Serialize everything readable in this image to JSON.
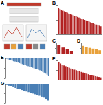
{
  "diagram": {
    "title": "A"
  },
  "chart_data": [
    {
      "type": "bar",
      "title": "B",
      "color": "#b22222",
      "tick_labels": false,
      "grid": false,
      "categories": [
        null,
        null,
        null,
        null,
        null,
        null,
        null,
        null,
        null,
        null,
        null,
        null,
        null,
        null,
        null,
        null,
        null,
        null,
        null,
        null,
        null,
        null,
        null,
        null,
        null,
        null,
        null,
        null,
        null,
        null
      ],
      "values": [
        92,
        88,
        85,
        82,
        80,
        77,
        75,
        72,
        70,
        68,
        66,
        64,
        62,
        60,
        58,
        56,
        54,
        52,
        50,
        48,
        46,
        44,
        42,
        40,
        38,
        36,
        34,
        32,
        30,
        28
      ],
      "ylim": [
        0,
        100
      ],
      "yticks": [
        0,
        50,
        100
      ]
    },
    {
      "type": "bar",
      "title": "C",
      "color": "#b22222",
      "tick_labels": false,
      "grid": false,
      "categories": [
        null,
        null,
        null,
        null
      ],
      "values": [
        80,
        55,
        40,
        20
      ],
      "ylim": [
        0,
        100
      ],
      "yticks": [
        0,
        50,
        100
      ]
    },
    {
      "type": "bar",
      "title": "D",
      "color": "#e8a13a",
      "tick_labels": false,
      "grid": false,
      "categories": [
        null,
        null,
        null,
        null,
        null,
        null
      ],
      "values": [
        70,
        60,
        52,
        45,
        38,
        30
      ],
      "ylim": [
        0,
        100
      ],
      "yticks": [
        0,
        50,
        100
      ]
    },
    {
      "type": "bar",
      "title": "E",
      "color": "#4a7fb5",
      "tick_labels": false,
      "grid": false,
      "categories": [
        null,
        null,
        null,
        null,
        null,
        null,
        null,
        null,
        null,
        null,
        null,
        null,
        null,
        null,
        null,
        null,
        null,
        null,
        null,
        null,
        null,
        null,
        null,
        null,
        null,
        null,
        null,
        null,
        null,
        null
      ],
      "values": [
        -4,
        -6,
        -8,
        -10,
        -12,
        -14,
        -15,
        -17,
        -19,
        -21,
        -23,
        -25,
        -27,
        -29,
        -31,
        -33,
        -35,
        -37,
        -39,
        -41,
        -43,
        -45,
        -47,
        -49,
        -52,
        -55,
        -58,
        -62,
        -66,
        -72
      ],
      "ylim": [
        -80,
        0
      ],
      "yticks": [
        -80,
        -40,
        0
      ]
    },
    {
      "type": "bar",
      "title": "F",
      "color": "#b22222",
      "tick_labels": false,
      "grid": false,
      "categories": [
        null,
        null,
        null,
        null,
        null,
        null,
        null,
        null,
        null,
        null,
        null,
        null,
        null,
        null,
        null,
        null,
        null,
        null,
        null,
        null,
        null,
        null,
        null,
        null,
        null
      ],
      "values": [
        90,
        84,
        78,
        74,
        70,
        66,
        62,
        58,
        55,
        52,
        49,
        46,
        43,
        40,
        37,
        34,
        31,
        28,
        25,
        22,
        20,
        18,
        16,
        14,
        12
      ],
      "ylim": [
        0,
        100
      ],
      "yticks": [
        0,
        50,
        100
      ]
    },
    {
      "type": "bar",
      "title": "G",
      "color": "#4a7fb5",
      "tick_labels": false,
      "grid": false,
      "categories": [
        null,
        null,
        null,
        null,
        null,
        null,
        null,
        null,
        null,
        null,
        null,
        null,
        null,
        null,
        null,
        null,
        null,
        null,
        null,
        null
      ],
      "values": [
        -5,
        -8,
        -11,
        -14,
        -17,
        -20,
        -23,
        -26,
        -29,
        -32,
        -35,
        -38,
        -41,
        -44,
        -47,
        -50,
        -54,
        -58,
        -63,
        -70
      ],
      "ylim": [
        -80,
        0
      ],
      "yticks": [
        -80,
        -40,
        0
      ]
    }
  ]
}
